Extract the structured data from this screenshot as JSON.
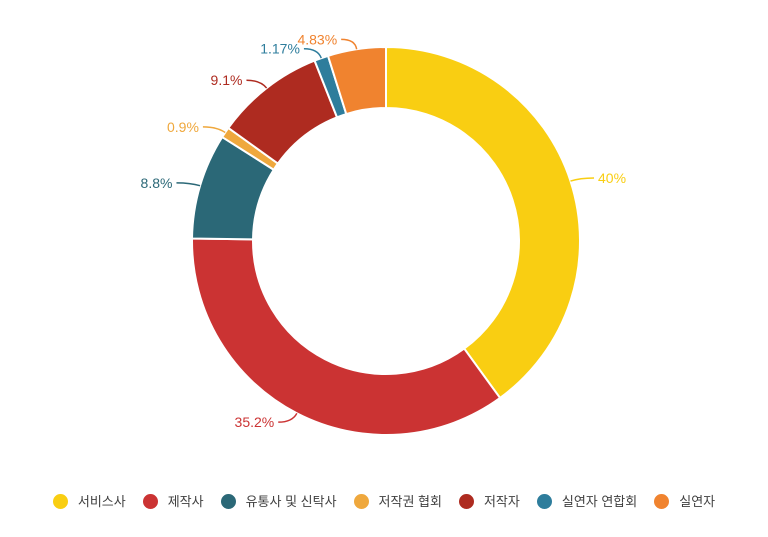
{
  "chart_data": {
    "type": "pie",
    "variant": "donut",
    "title": "",
    "start_angle": "top",
    "direction": "clockwise",
    "legend_position": "bottom",
    "labels_outside": true,
    "series": [
      {
        "label": "서비스사",
        "value": 40,
        "display": "40%",
        "color": "#F9CE12"
      },
      {
        "label": "제작사",
        "value": 35.2,
        "display": "35.2%",
        "color": "#CB3333"
      },
      {
        "label": "유통사 및 신탁사",
        "value": 8.8,
        "display": "8.8%",
        "color": "#2B6877"
      },
      {
        "label": "저작권 협회",
        "value": 0.9,
        "display": "0.9%",
        "color": "#EFA83D"
      },
      {
        "label": "저작자",
        "value": 9.1,
        "display": "9.1%",
        "color": "#AE2B20"
      },
      {
        "label": "실연자 연합회",
        "value": 1.17,
        "display": "1.17%",
        "color": "#2E7D9C"
      },
      {
        "label": "실연자",
        "value": 4.83,
        "display": "4.83%",
        "color": "#F0832F"
      }
    ],
    "legend_text_color": "#404040",
    "background_color": "#ffffff"
  }
}
